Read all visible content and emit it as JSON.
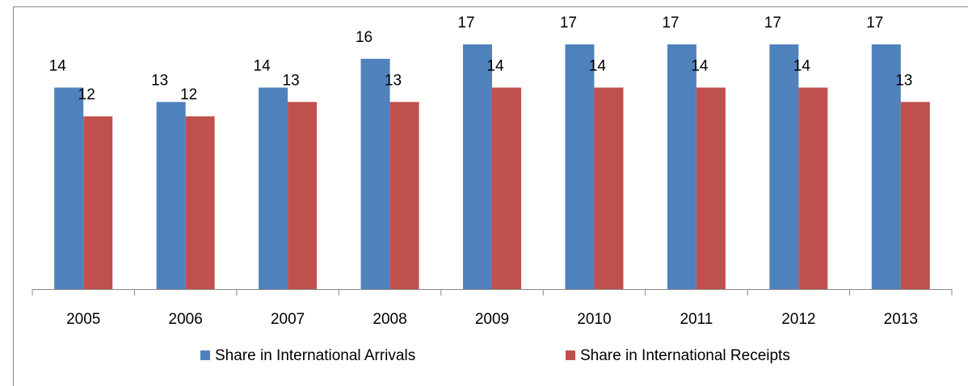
{
  "chart_data": {
    "type": "bar",
    "categories": [
      "2005",
      "2006",
      "2007",
      "2008",
      "2009",
      "2010",
      "2011",
      "2012",
      "2013"
    ],
    "series": [
      {
        "name": "Share in International Arrivals",
        "color": "#4f81bd",
        "values": [
          14,
          13,
          14,
          16,
          17,
          17,
          17,
          17,
          17
        ]
      },
      {
        "name": "Share in International Receipts",
        "color": "#c0504d",
        "values": [
          12,
          12,
          13,
          13,
          14,
          14,
          14,
          14,
          13
        ]
      }
    ],
    "legend": "bottom"
  }
}
